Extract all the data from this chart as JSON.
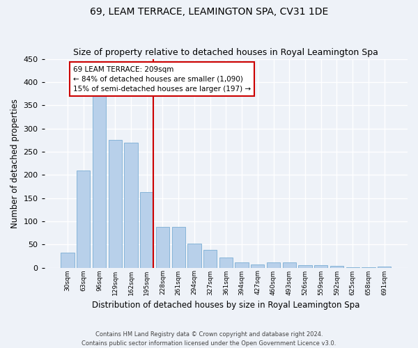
{
  "title": "69, LEAM TERRACE, LEAMINGTON SPA, CV31 1DE",
  "subtitle": "Size of property relative to detached houses in Royal Leamington Spa",
  "xlabel": "Distribution of detached houses by size in Royal Leamington Spa",
  "ylabel": "Number of detached properties",
  "footer_line1": "Contains HM Land Registry data © Crown copyright and database right 2024.",
  "footer_line2": "Contains public sector information licensed under the Open Government Licence v3.0.",
  "bar_labels": [
    "30sqm",
    "63sqm",
    "96sqm",
    "129sqm",
    "162sqm",
    "195sqm",
    "228sqm",
    "261sqm",
    "294sqm",
    "327sqm",
    "361sqm",
    "394sqm",
    "427sqm",
    "460sqm",
    "493sqm",
    "526sqm",
    "559sqm",
    "592sqm",
    "625sqm",
    "658sqm",
    "691sqm"
  ],
  "bar_values": [
    33,
    210,
    378,
    276,
    270,
    163,
    88,
    88,
    52,
    38,
    22,
    12,
    7,
    12,
    11,
    5,
    5,
    4,
    1,
    1,
    3
  ],
  "bar_color": "#b8d0ea",
  "bar_edge_color": "#7aadd4",
  "annotation_title": "69 LEAM TERRACE: 209sqm",
  "annotation_line1": "← 84% of detached houses are smaller (1,090)",
  "annotation_line2": "15% of semi-detached houses are larger (197) →",
  "annotation_box_facecolor": "#ffffff",
  "annotation_border_color": "#cc0000",
  "property_line_color": "#cc0000",
  "ylim": [
    0,
    450
  ],
  "yticks": [
    0,
    50,
    100,
    150,
    200,
    250,
    300,
    350,
    400,
    450
  ],
  "background_color": "#eef2f8",
  "grid_color": "#ffffff",
  "title_fontsize": 10,
  "subtitle_fontsize": 9,
  "xlabel_fontsize": 8.5,
  "ylabel_fontsize": 8.5,
  "tick_fontsize": 8,
  "xtick_fontsize": 6.5,
  "annotation_fontsize": 7.5
}
